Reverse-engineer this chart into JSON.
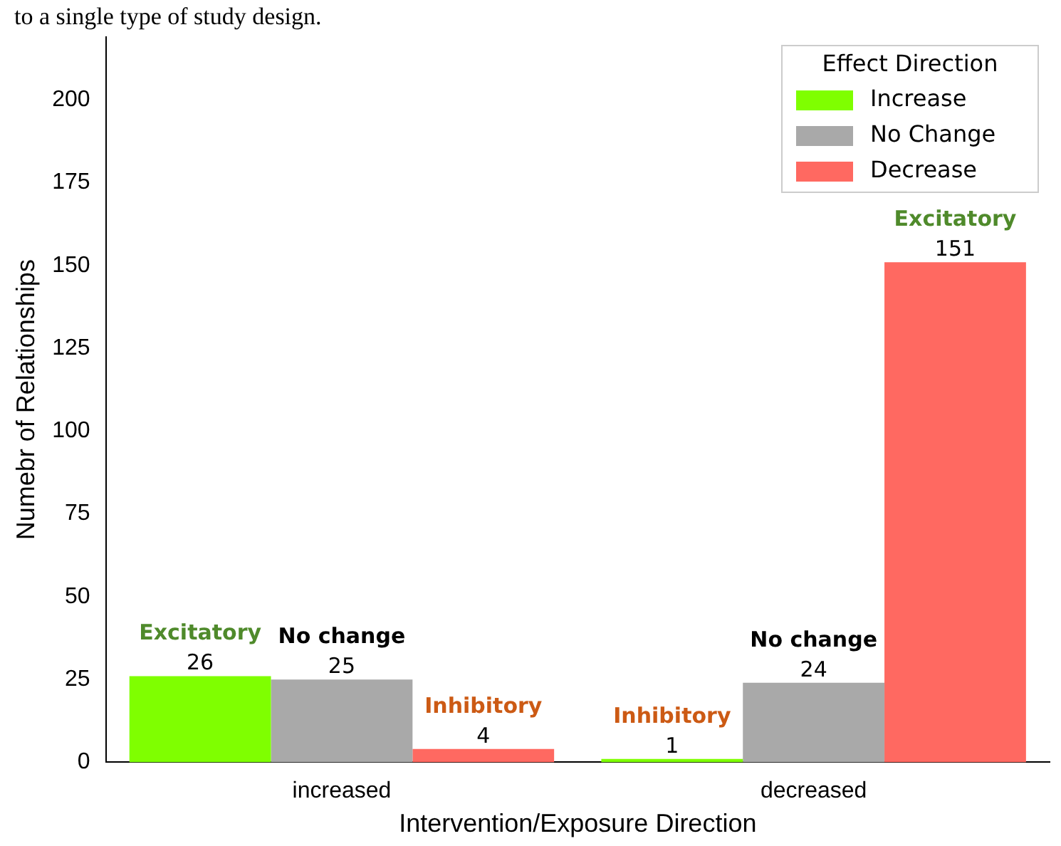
{
  "chart_data": {
    "type": "bar",
    "xlabel": "Intervention/Exposure Direction",
    "ylabel": "Numebr of Relationships",
    "legend_title": "Effect Direction",
    "categories": [
      "increased",
      "decreased"
    ],
    "series": [
      {
        "name": "Increase",
        "color": "#7fff00",
        "values": [
          26,
          1
        ]
      },
      {
        "name": "No Change",
        "color": "#a9a9a9",
        "values": [
          25,
          24
        ]
      },
      {
        "name": "Decrease",
        "color": "#ff6961",
        "values": [
          4,
          151
        ]
      }
    ],
    "ylim": [
      0,
      219
    ],
    "yticks": [
      0,
      25,
      50,
      75,
      100,
      125,
      150,
      175,
      200
    ],
    "grid": false,
    "legend": "top right",
    "data_labels": true,
    "annotations": [
      "to a single type of study design.",
      "Excitatory",
      "No change",
      "Inhibitory",
      "Inhibitory",
      "No change",
      "Excitatory"
    ]
  }
}
